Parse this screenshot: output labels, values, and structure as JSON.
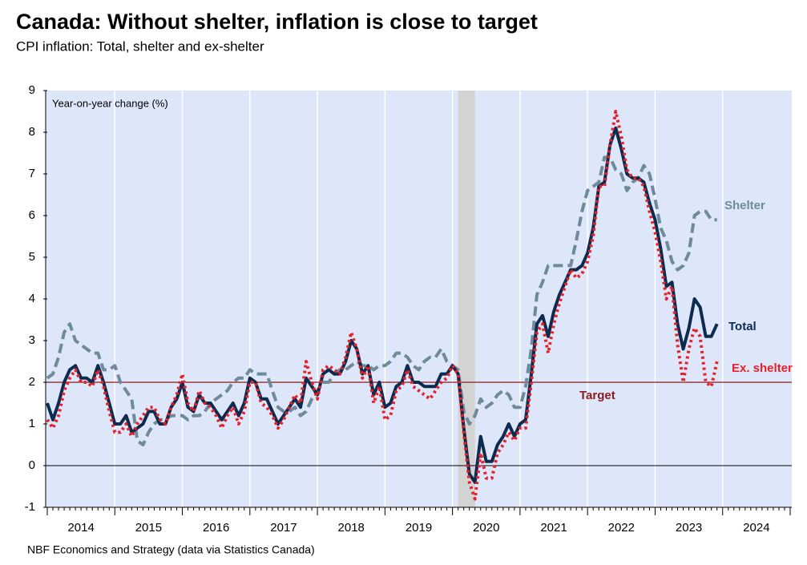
{
  "chart_data": {
    "type": "line",
    "title": "Canada: Without shelter, inflation is close to target",
    "subtitle": "CPI inflation: Total, shelter and ex-shelter",
    "y_label": "Year-on-year change (%)",
    "source": "NBF Economics and Strategy (data via Statistics Canada)",
    "x": [
      2014,
      2014.083,
      2014.167,
      2014.25,
      2014.333,
      2014.417,
      2014.5,
      2014.583,
      2014.667,
      2014.75,
      2014.833,
      2014.917,
      2015,
      2015.083,
      2015.167,
      2015.25,
      2015.333,
      2015.417,
      2015.5,
      2015.583,
      2015.667,
      2015.75,
      2015.833,
      2015.917,
      2016,
      2016.083,
      2016.167,
      2016.25,
      2016.333,
      2016.417,
      2016.5,
      2016.583,
      2016.667,
      2016.75,
      2016.833,
      2016.917,
      2017,
      2017.083,
      2017.167,
      2017.25,
      2017.333,
      2017.417,
      2017.5,
      2017.583,
      2017.667,
      2017.75,
      2017.833,
      2017.917,
      2018,
      2018.083,
      2018.167,
      2018.25,
      2018.333,
      2018.417,
      2018.5,
      2018.583,
      2018.667,
      2018.75,
      2018.833,
      2018.917,
      2019,
      2019.083,
      2019.167,
      2019.25,
      2019.333,
      2019.417,
      2019.5,
      2019.583,
      2019.667,
      2019.75,
      2019.833,
      2019.917,
      2020,
      2020.083,
      2020.167,
      2020.25,
      2020.333,
      2020.417,
      2020.5,
      2020.583,
      2020.667,
      2020.75,
      2020.833,
      2020.917,
      2021,
      2021.083,
      2021.167,
      2021.25,
      2021.333,
      2021.417,
      2021.5,
      2021.583,
      2021.667,
      2021.75,
      2021.833,
      2021.917,
      2022,
      2022.083,
      2022.167,
      2022.25,
      2022.333,
      2022.417,
      2022.5,
      2022.583,
      2022.667,
      2022.75,
      2022.833,
      2022.917,
      2023,
      2023.083,
      2023.167,
      2023.25,
      2023.333,
      2023.417,
      2023.5,
      2023.583,
      2023.667,
      2023.75,
      2023.833,
      2023.917
    ],
    "series": [
      {
        "name": "Shelter",
        "color": "#6f8b9b",
        "dash": "dashed",
        "values": [
          2.1,
          2.2,
          2.6,
          3.2,
          3.4,
          3.0,
          2.9,
          2.8,
          2.7,
          2.7,
          2.3,
          2.3,
          2.4,
          2.0,
          1.8,
          1.6,
          0.6,
          0.5,
          0.8,
          1.0,
          1.1,
          1.1,
          1.2,
          1.2,
          1.2,
          1.1,
          1.2,
          1.2,
          1.3,
          1.5,
          1.6,
          1.7,
          1.8,
          2.0,
          2.1,
          2.1,
          2.3,
          2.2,
          2.2,
          2.2,
          1.8,
          1.4,
          1.3,
          1.3,
          1.4,
          1.2,
          1.3,
          1.6,
          1.8,
          2.0,
          2.0,
          2.2,
          2.3,
          2.3,
          2.4,
          2.5,
          2.4,
          2.4,
          2.3,
          2.4,
          2.4,
          2.5,
          2.7,
          2.7,
          2.6,
          2.4,
          2.3,
          2.5,
          2.6,
          2.6,
          2.8,
          2.5,
          2.4,
          2.3,
          1.3,
          1.0,
          1.2,
          1.6,
          1.4,
          1.5,
          1.7,
          1.8,
          1.7,
          1.4,
          1.4,
          1.9,
          2.8,
          4.1,
          4.4,
          4.8,
          4.8,
          4.8,
          4.8,
          4.8,
          5.4,
          6.1,
          6.6,
          6.7,
          6.8,
          7.4,
          7.4,
          7.1,
          7.0,
          6.6,
          6.8,
          6.9,
          7.2,
          7.0,
          6.4,
          5.7,
          5.4,
          4.9,
          4.7,
          4.8,
          5.1,
          6.0,
          6.1,
          6.1,
          5.9,
          5.9
        ]
      },
      {
        "name": "Total",
        "color": "#0d2b4e",
        "dash": "solid",
        "values": [
          1.5,
          1.1,
          1.5,
          2.0,
          2.3,
          2.4,
          2.1,
          2.1,
          2.0,
          2.4,
          2.0,
          1.5,
          1.0,
          1.0,
          1.2,
          0.8,
          0.9,
          1.0,
          1.3,
          1.3,
          1.0,
          1.0,
          1.4,
          1.6,
          2.0,
          1.4,
          1.3,
          1.7,
          1.5,
          1.5,
          1.3,
          1.1,
          1.3,
          1.5,
          1.2,
          1.5,
          2.1,
          2.0,
          1.6,
          1.6,
          1.3,
          1.0,
          1.2,
          1.4,
          1.6,
          1.4,
          2.1,
          1.9,
          1.7,
          2.2,
          2.3,
          2.2,
          2.2,
          2.5,
          3.0,
          2.8,
          2.2,
          2.4,
          1.7,
          2.0,
          1.4,
          1.5,
          1.9,
          2.0,
          2.4,
          2.0,
          2.0,
          1.9,
          1.9,
          1.9,
          2.2,
          2.2,
          2.4,
          2.2,
          0.9,
          -0.2,
          -0.4,
          0.7,
          0.1,
          0.1,
          0.5,
          0.7,
          1.0,
          0.7,
          1.0,
          1.1,
          2.2,
          3.4,
          3.6,
          3.1,
          3.7,
          4.1,
          4.4,
          4.7,
          4.7,
          4.8,
          5.1,
          5.7,
          6.7,
          6.8,
          7.7,
          8.1,
          7.6,
          7.0,
          6.9,
          6.9,
          6.8,
          6.3,
          5.9,
          5.2,
          4.3,
          4.4,
          3.4,
          2.8,
          3.3,
          4.0,
          3.8,
          3.1,
          3.1,
          3.4
        ]
      },
      {
        "name": "Ex. shelter",
        "color": "#e8202a",
        "dash": "dotted",
        "values": [
          1.1,
          0.9,
          1.2,
          1.8,
          2.1,
          2.3,
          2.0,
          2.0,
          1.9,
          2.3,
          1.9,
          1.3,
          0.8,
          0.8,
          1.0,
          0.7,
          1.0,
          1.2,
          1.4,
          1.4,
          1.1,
          1.0,
          1.4,
          1.7,
          2.2,
          1.5,
          1.3,
          1.8,
          1.5,
          1.4,
          1.2,
          0.9,
          1.2,
          1.4,
          1.0,
          1.3,
          2.0,
          2.0,
          1.5,
          1.4,
          1.2,
          0.9,
          1.1,
          1.4,
          1.7,
          1.5,
          2.5,
          2.0,
          1.6,
          2.3,
          2.4,
          2.3,
          2.2,
          2.6,
          3.2,
          2.8,
          2.1,
          2.4,
          1.5,
          1.9,
          1.1,
          1.2,
          1.8,
          1.9,
          2.3,
          1.9,
          1.8,
          1.7,
          1.6,
          1.8,
          2.0,
          2.1,
          2.4,
          2.2,
          0.8,
          -0.4,
          -0.8,
          0.3,
          -0.3,
          -0.3,
          0.3,
          0.5,
          0.8,
          0.6,
          0.9,
          0.9,
          2.0,
          3.2,
          3.4,
          2.7,
          3.4,
          3.9,
          4.3,
          4.7,
          4.5,
          4.6,
          4.9,
          5.5,
          6.7,
          6.7,
          7.7,
          8.5,
          7.9,
          7.1,
          6.9,
          6.9,
          6.7,
          6.1,
          5.6,
          4.9,
          4.0,
          4.3,
          2.9,
          2.0,
          2.8,
          3.3,
          3.1,
          2.0,
          1.9,
          2.5
        ]
      }
    ],
    "reference_line": {
      "value": 2,
      "label": "Target",
      "color": "#8b1a1a"
    },
    "shaded_range": [
      2020.083,
      2020.333
    ],
    "xlim": [
      2014,
      2025
    ],
    "xticks": [
      2014,
      2015,
      2016,
      2017,
      2018,
      2019,
      2020,
      2021,
      2022,
      2023,
      2024
    ],
    "ylim": [
      -1,
      9
    ],
    "yticks": [
      -1,
      0,
      1,
      2,
      3,
      4,
      5,
      6,
      7,
      8,
      9
    ],
    "grid": true
  }
}
